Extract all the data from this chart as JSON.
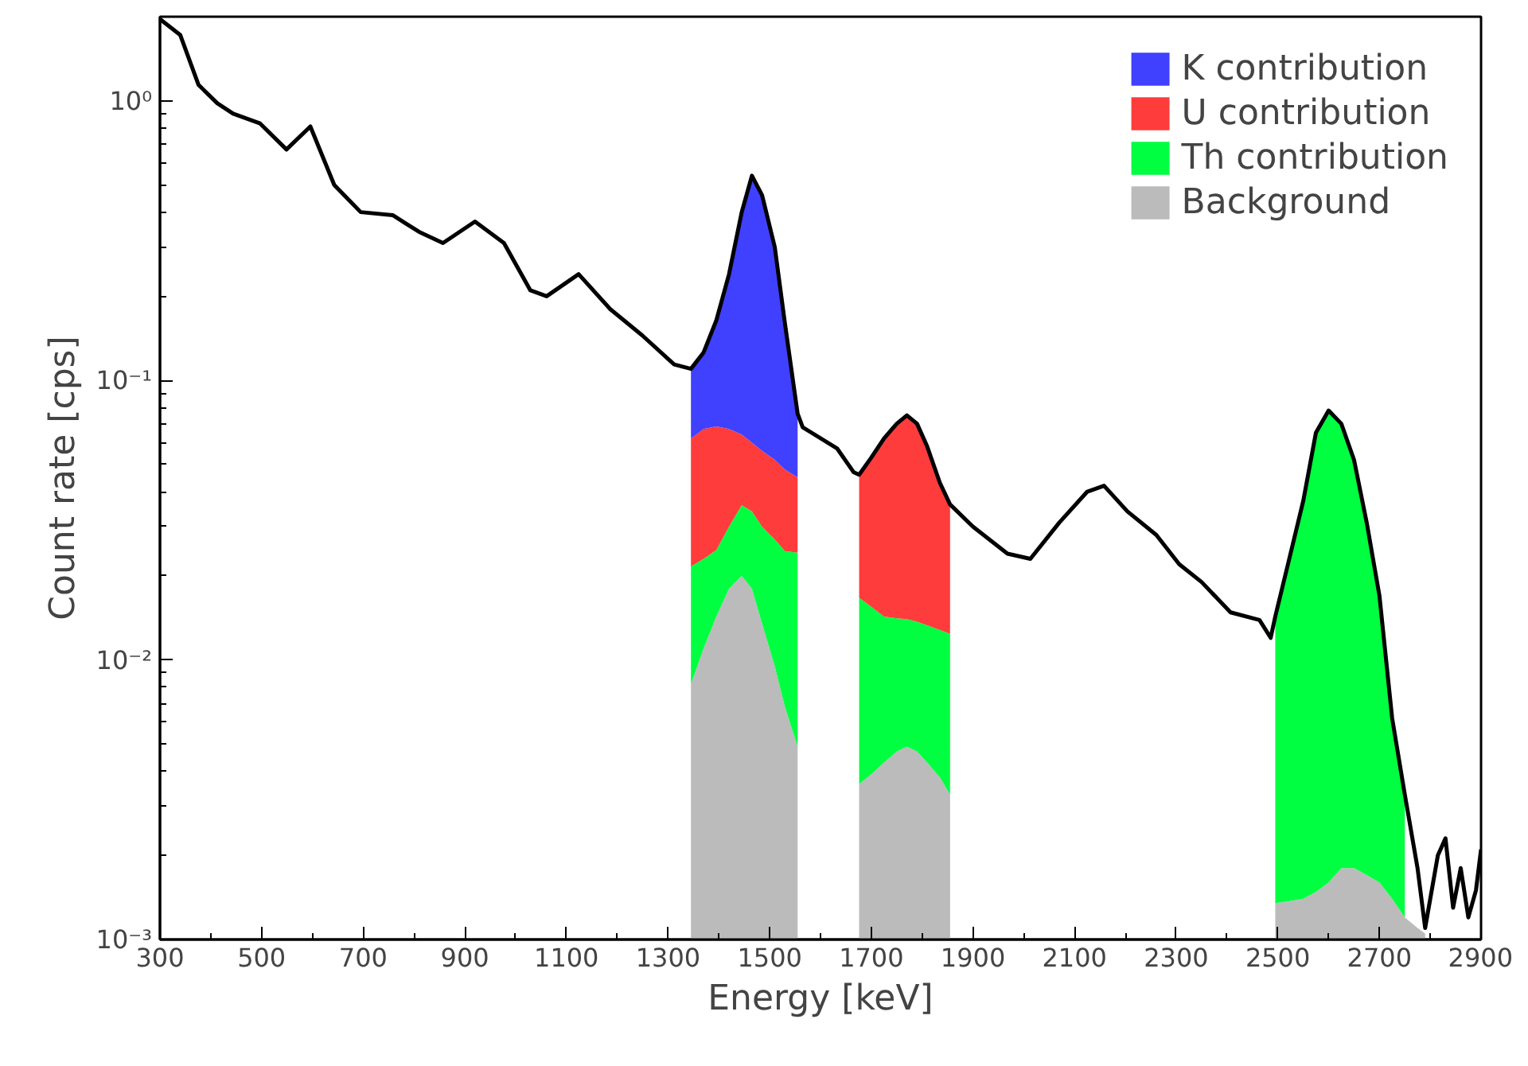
{
  "chart_data": {
    "type": "area",
    "stacked": true,
    "log": "y",
    "grid": false,
    "legend": "top right",
    "xlabel": "Energy [keV]",
    "ylabel": "Count rate [cps]",
    "xlim": [
      300,
      2900
    ],
    "xticks": [
      300,
      500,
      700,
      900,
      1100,
      1300,
      1500,
      1700,
      1900,
      2100,
      2300,
      2500,
      2700,
      2900
    ],
    "ylim": [
      0.001,
      2
    ],
    "yticks": [
      {
        "value": 0.001,
        "label": "10⁻³"
      },
      {
        "value": 0.01,
        "label": "10⁻²"
      },
      {
        "value": 0.1,
        "label": "10⁻¹"
      },
      {
        "value": 1,
        "label": "10⁰"
      }
    ],
    "x": [
      1345,
      1370,
      1395,
      1420,
      1445,
      1465,
      1485,
      1510,
      1530,
      1555,
      1615,
      1676,
      1700,
      1725,
      1750,
      1770,
      1790,
      1810,
      1835,
      1855,
      2200,
      2495,
      2520,
      2550,
      2575,
      2600,
      2625,
      2650,
      2675,
      2700,
      2725,
      2750,
      2775,
      2790
    ],
    "series": [
      {
        "name": "Background",
        "color": "#bbbbbb",
        "values": [
          0.0082,
          0.011,
          0.0143,
          0.018,
          0.02,
          0.018,
          0.0135,
          0.0095,
          0.0068,
          0.0049,
          null,
          0.0036,
          0.0039,
          0.0043,
          0.0047,
          0.0049,
          0.0047,
          0.0043,
          0.0038,
          0.0033,
          null,
          0.00135,
          0.00137,
          0.0014,
          0.00148,
          0.0016,
          0.0018,
          0.0018,
          0.0017,
          0.0016,
          0.0014,
          0.0012,
          0.0011,
          0.00105
        ]
      },
      {
        "name": "Th contribution",
        "color": "#00ff40",
        "values": [
          0.0134,
          0.012,
          0.0104,
          0.012,
          0.0158,
          0.016,
          0.0165,
          0.0175,
          0.0177,
          0.0193,
          null,
          0.0131,
          0.0116,
          0.01,
          0.0094,
          0.0091,
          0.009,
          0.009,
          0.009,
          0.0091,
          null,
          0.013,
          0.0206,
          0.0356,
          0.0635,
          0.0762,
          0.0682,
          0.0502,
          0.0293,
          0.0154,
          0.0048,
          0.0021,
          null,
          null
        ]
      },
      {
        "name": "U contribution",
        "color": "#ff3c3c",
        "values": [
          0.0404,
          0.044,
          0.0438,
          0.037,
          0.0282,
          0.026,
          0.026,
          0.025,
          0.0235,
          0.0208,
          null,
          0.0293,
          0.0375,
          0.0477,
          0.0559,
          0.061,
          0.0563,
          0.0447,
          0.0302,
          0.0236,
          null,
          null,
          null,
          null,
          null,
          null,
          null,
          null,
          null,
          null,
          null,
          null,
          null,
          null
        ]
      },
      {
        "name": "K contribution",
        "color": "#4040ff",
        "values": [
          0.048,
          0.059,
          0.0955,
          0.173,
          0.336,
          0.48,
          0.404,
          0.248,
          0.112,
          0.031,
          null,
          null,
          null,
          null,
          null,
          null,
          null,
          null,
          null,
          null,
          null,
          null,
          null,
          null,
          null,
          null,
          null,
          null,
          null,
          null,
          null,
          null,
          null,
          null
        ]
      },
      {
        "type": "line",
        "color": "#000000",
        "x": [
          300,
          340,
          376,
          413,
          444,
          497,
          549,
          596,
          643,
          695,
          758,
          810,
          857,
          920,
          977,
          1029,
          1061,
          1124,
          1186,
          1249,
          1312,
          1345,
          1370,
          1395,
          1420,
          1445,
          1465,
          1485,
          1510,
          1530,
          1555,
          1565,
          1633,
          1665,
          1676,
          1700,
          1725,
          1750,
          1770,
          1790,
          1810,
          1835,
          1855,
          1900,
          1968,
          2013,
          2070,
          2125,
          2158,
          2204,
          2261,
          2306,
          2350,
          2407,
          2464,
          2486,
          2495,
          2520,
          2550,
          2575,
          2600,
          2625,
          2650,
          2675,
          2700,
          2725,
          2750,
          2775,
          2790,
          2815,
          2830,
          2845,
          2860,
          2875,
          2890,
          2900
        ],
        "values": [
          1.96,
          1.72,
          1.14,
          0.98,
          0.9,
          0.83,
          0.67,
          0.81,
          0.5,
          0.4,
          0.39,
          0.34,
          0.31,
          0.37,
          0.31,
          0.21,
          0.2,
          0.24,
          0.18,
          0.145,
          0.114,
          0.11,
          0.126,
          0.164,
          0.24,
          0.4,
          0.54,
          0.46,
          0.3,
          0.16,
          0.076,
          0.068,
          0.057,
          0.047,
          0.046,
          0.053,
          0.062,
          0.07,
          0.075,
          0.07,
          0.058,
          0.043,
          0.036,
          0.03,
          0.024,
          0.023,
          0.031,
          0.04,
          0.042,
          0.034,
          0.028,
          0.022,
          0.019,
          0.0148,
          0.0139,
          0.012,
          0.0143,
          0.022,
          0.037,
          0.065,
          0.078,
          0.07,
          0.052,
          0.031,
          0.017,
          0.0062,
          0.0033,
          0.0018,
          0.0011,
          0.002,
          0.0023,
          0.0013,
          0.0018,
          0.0012,
          0.0015,
          0.0021
        ]
      }
    ]
  }
}
